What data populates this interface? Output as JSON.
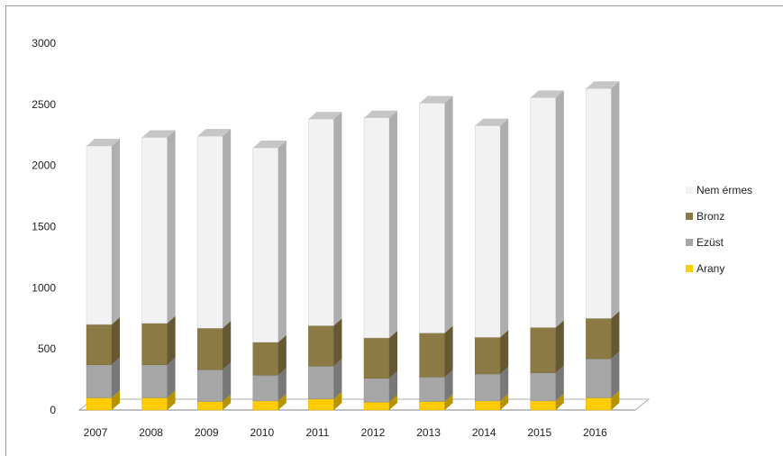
{
  "chart_data": {
    "type": "bar",
    "stacked": true,
    "style": "3d-column",
    "categories": [
      "2007",
      "2008",
      "2009",
      "2010",
      "2011",
      "2012",
      "2013",
      "2014",
      "2015",
      "2016"
    ],
    "series": [
      {
        "name": "Arany",
        "color": "#FFCC00",
        "values": [
          100,
          100,
          70,
          75,
          90,
          65,
          70,
          75,
          75,
          100
        ]
      },
      {
        "name": "Ezüst",
        "color": "#A6A6A6",
        "values": [
          270,
          270,
          260,
          210,
          270,
          195,
          200,
          220,
          230,
          320
        ]
      },
      {
        "name": "Bronz",
        "color": "#8C7A45",
        "values": [
          330,
          340,
          340,
          270,
          330,
          330,
          360,
          300,
          370,
          330
        ]
      },
      {
        "name": "Nem érmes",
        "color": "#F2F2F2",
        "values": [
          1460,
          1520,
          1570,
          1590,
          1690,
          1800,
          1880,
          1730,
          1880,
          1880
        ]
      }
    ],
    "ylim": [
      0,
      3000
    ],
    "yticks": [
      "0",
      "500",
      "1000",
      "1500",
      "2000",
      "2500",
      "3000"
    ],
    "legend_position": "right",
    "legend_order": [
      "Nem érmes",
      "Bronz",
      "Ezüst",
      "Arany"
    ],
    "grid": false
  }
}
